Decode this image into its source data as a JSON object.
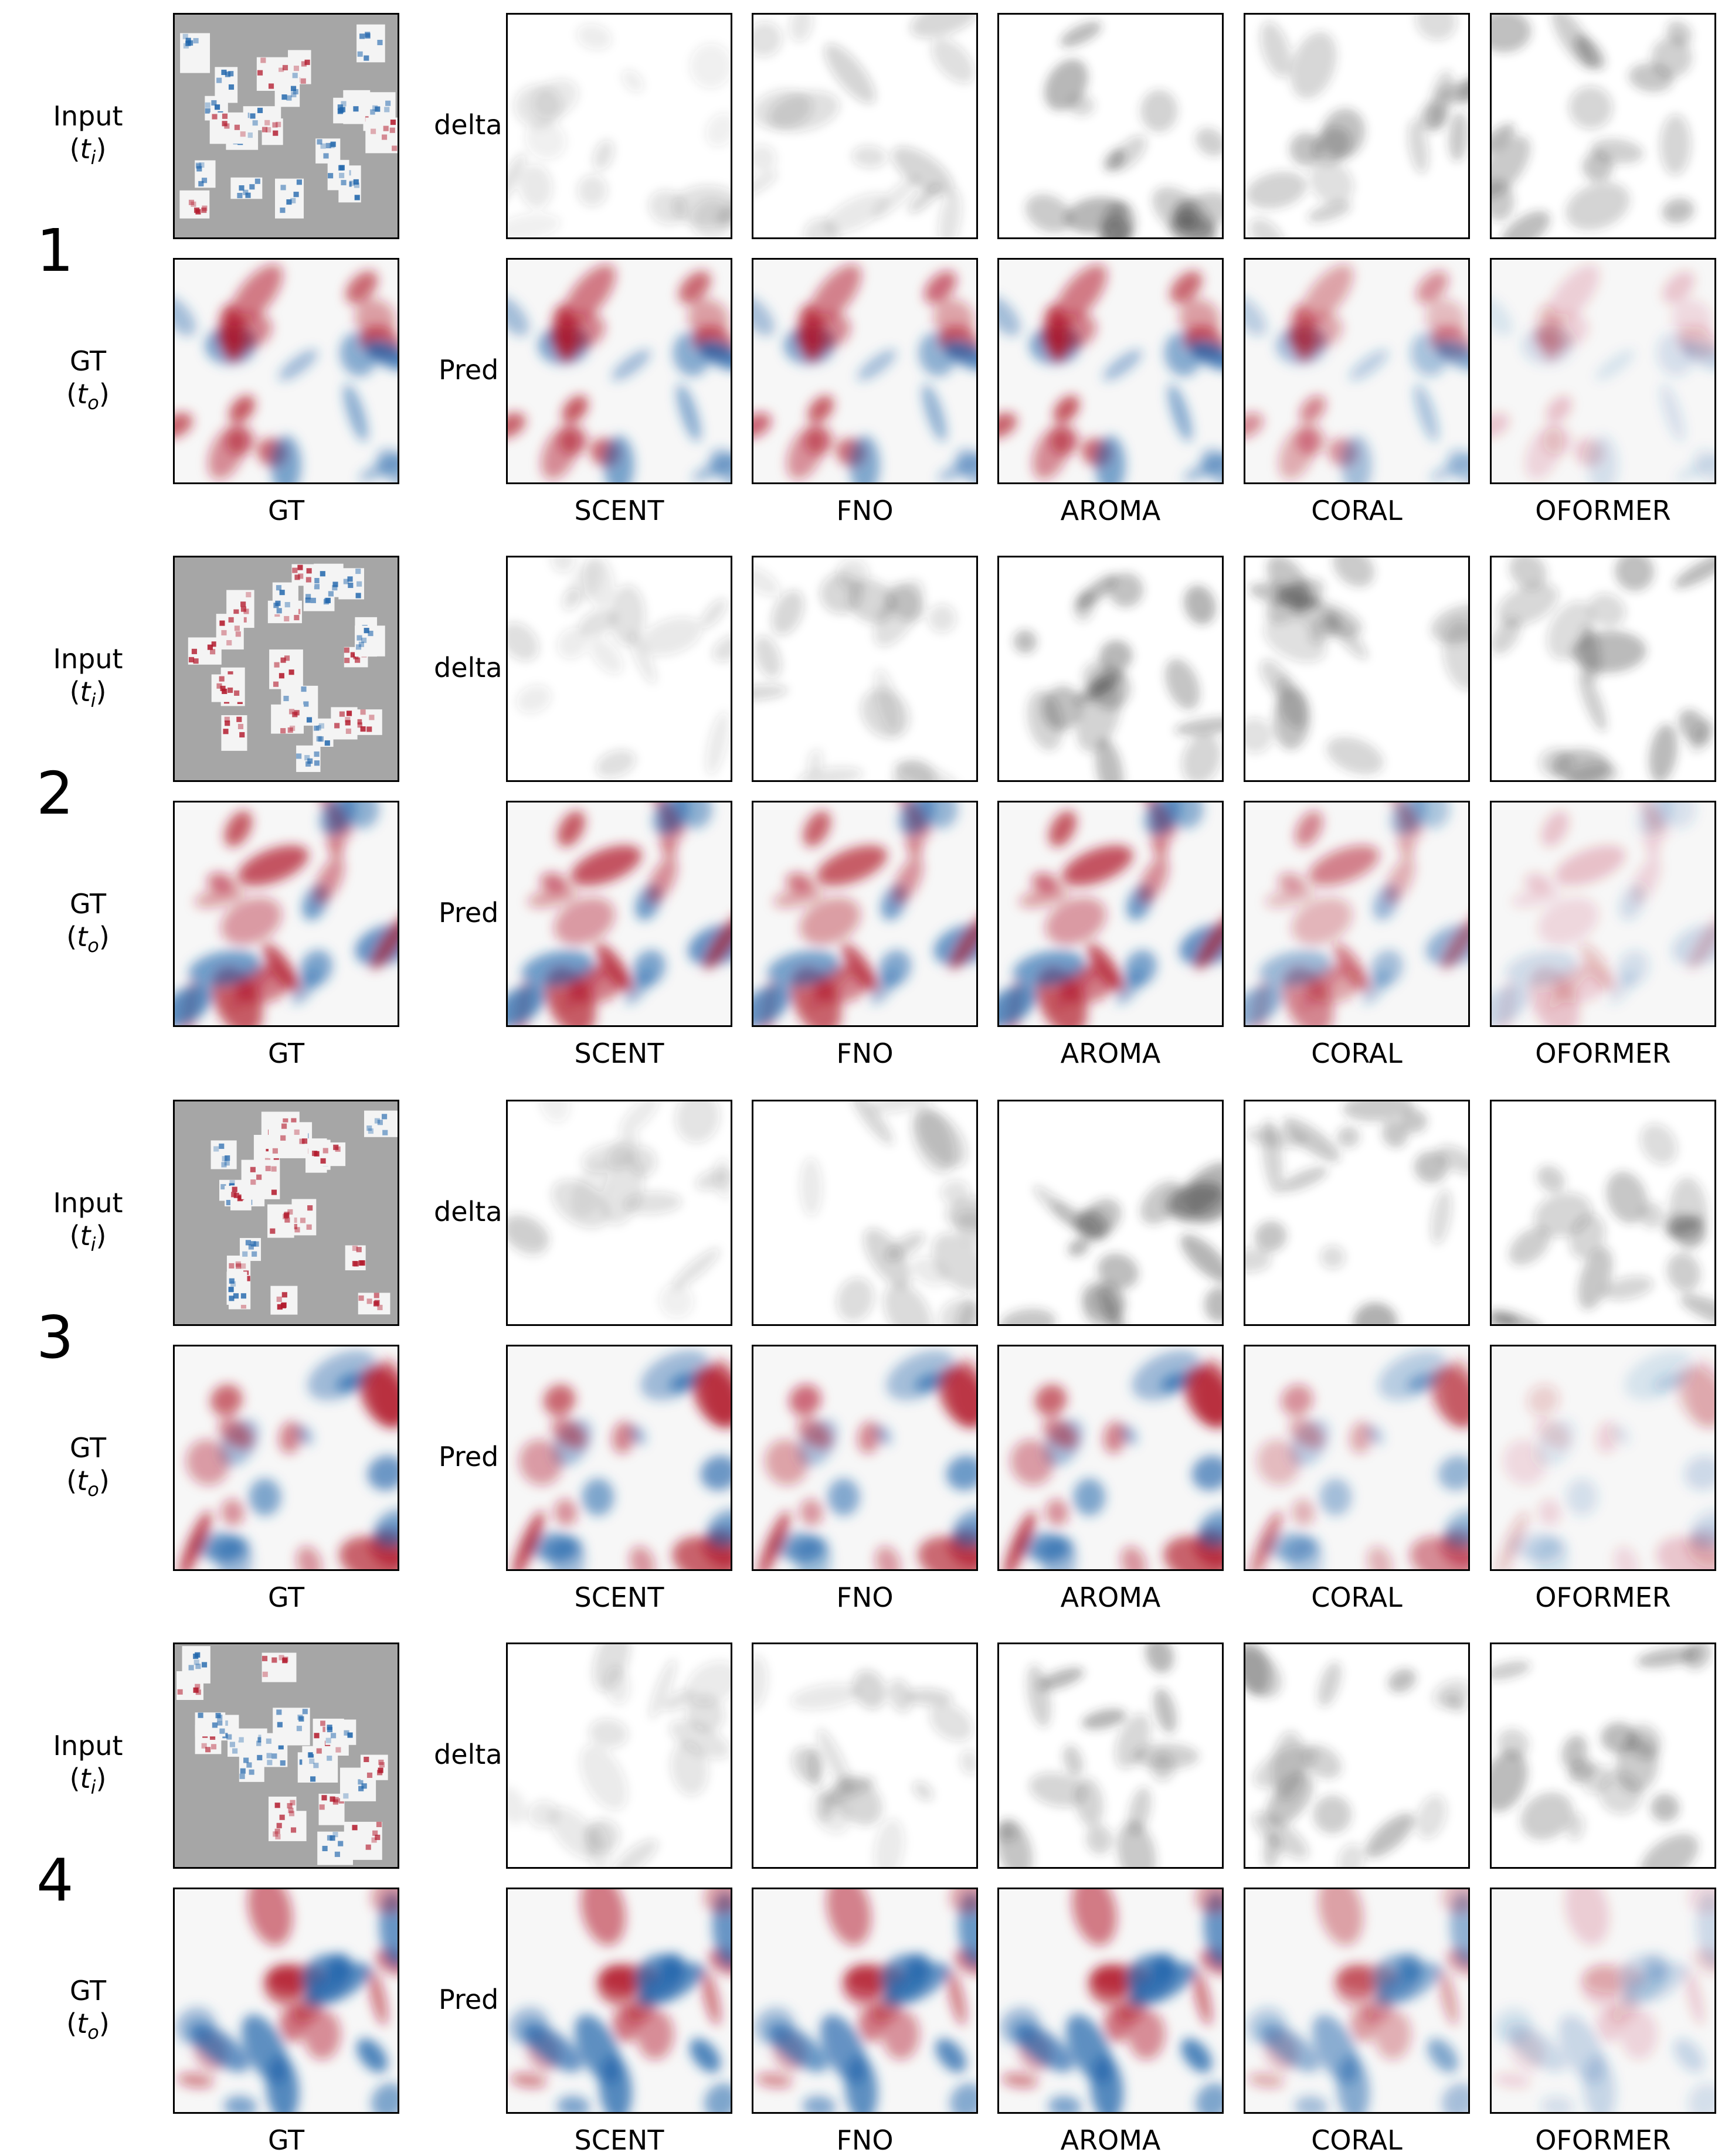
{
  "row_labels": {
    "input": "Input",
    "input_time": "t",
    "input_time_sub": "i",
    "gt": "GT",
    "gt_time": "t",
    "gt_time_sub": "o",
    "delta": "delta",
    "pred": "Pred"
  },
  "columns": [
    "GT",
    "SCENT",
    "FNO",
    "AROMA",
    "CORAL",
    "OFORMER"
  ],
  "methods": [
    "SCENT",
    "FNO",
    "AROMA",
    "CORAL",
    "OFORMER"
  ],
  "samples": [
    "1",
    "2",
    "3",
    "4"
  ],
  "colors": {
    "positive": "#b2182b",
    "negative": "#2166ac",
    "neutral": "#f7f7f7",
    "mask": "#a6a6a6",
    "delta": "#303030"
  }
}
